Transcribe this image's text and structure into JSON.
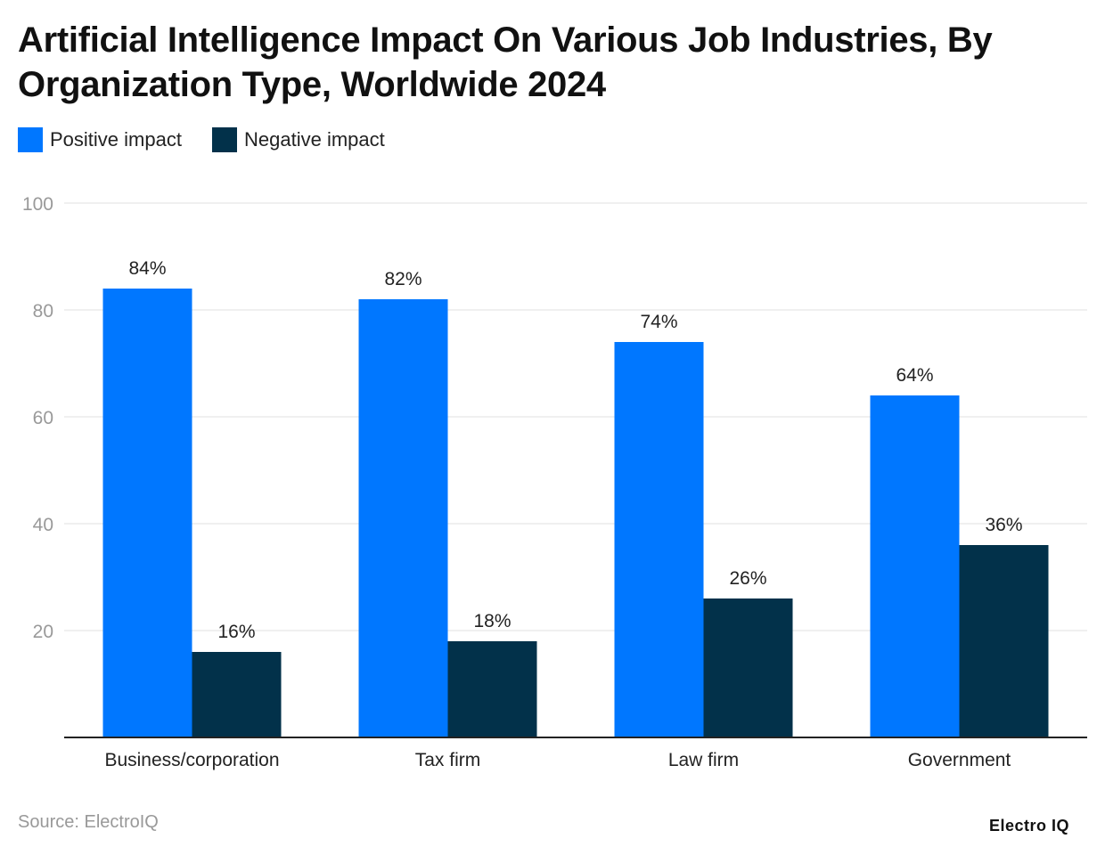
{
  "chart_data": {
    "type": "bar",
    "title": "Artificial Intelligence Impact On Various Job Industries, By Organization Type, Worldwide 2024",
    "categories": [
      "Business/corporation",
      "Tax firm",
      "Law firm",
      "Government"
    ],
    "series": [
      {
        "name": "Positive impact",
        "values": [
          84,
          82,
          74,
          64
        ],
        "labels": [
          "84%",
          "82%",
          "74%",
          "64%"
        ],
        "color": "#0077FF"
      },
      {
        "name": "Negative impact",
        "values": [
          16,
          18,
          26,
          36
        ],
        "labels": [
          "16%",
          "18%",
          "26%",
          "36%"
        ],
        "color": "#02314A"
      }
    ],
    "yticks": [
      "20",
      "40",
      "60",
      "80",
      "100"
    ],
    "ylim": [
      0,
      100
    ],
    "grid": true,
    "legend": "top-left"
  },
  "source": "Source: ElectroIQ",
  "logo": "Electro IQ"
}
